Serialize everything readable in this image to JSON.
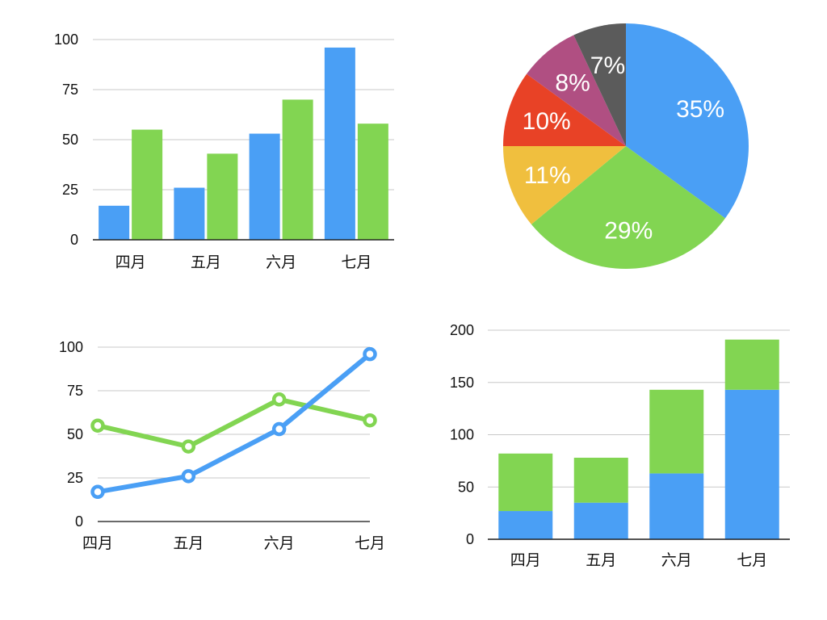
{
  "colors": {
    "blue": "#4a9ff5",
    "green": "#82d552",
    "yellow": "#f0bf3e",
    "red": "#e84226",
    "purple": "#b04f82",
    "gray": "#5b5b5b"
  },
  "chart_data": [
    {
      "type": "bar",
      "categories": [
        "四月",
        "五月",
        "六月",
        "七月"
      ],
      "series": [
        {
          "values": [
            17,
            26,
            53,
            96
          ]
        },
        {
          "values": [
            55,
            43,
            70,
            58
          ]
        }
      ],
      "yticks": [
        "0",
        "25",
        "50",
        "75",
        "100"
      ],
      "ylim": [
        0,
        100
      ],
      "grid": true
    },
    {
      "type": "pie",
      "slices": [
        {
          "label": "35%",
          "value": 35
        },
        {
          "label": "29%",
          "value": 29
        },
        {
          "label": "11%",
          "value": 11
        },
        {
          "label": "10%",
          "value": 10
        },
        {
          "label": "8%",
          "value": 8
        },
        {
          "label": "7%",
          "value": 7
        }
      ]
    },
    {
      "type": "line",
      "categories": [
        "四月",
        "五月",
        "六月",
        "七月"
      ],
      "series": [
        {
          "values": [
            17,
            26,
            53,
            96
          ]
        },
        {
          "values": [
            55,
            43,
            70,
            58
          ]
        }
      ],
      "yticks": [
        "0",
        "25",
        "50",
        "75",
        "100"
      ],
      "ylim": [
        0,
        100
      ],
      "grid": true
    },
    {
      "type": "bar",
      "stacked": true,
      "categories": [
        "四月",
        "五月",
        "六月",
        "七月"
      ],
      "series": [
        {
          "values": [
            27,
            35,
            63,
            143
          ]
        },
        {
          "values": [
            55,
            43,
            80,
            48
          ]
        }
      ],
      "yticks": [
        "0",
        "50",
        "100",
        "150",
        "200"
      ],
      "ylim": [
        0,
        200
      ],
      "grid": true
    }
  ]
}
